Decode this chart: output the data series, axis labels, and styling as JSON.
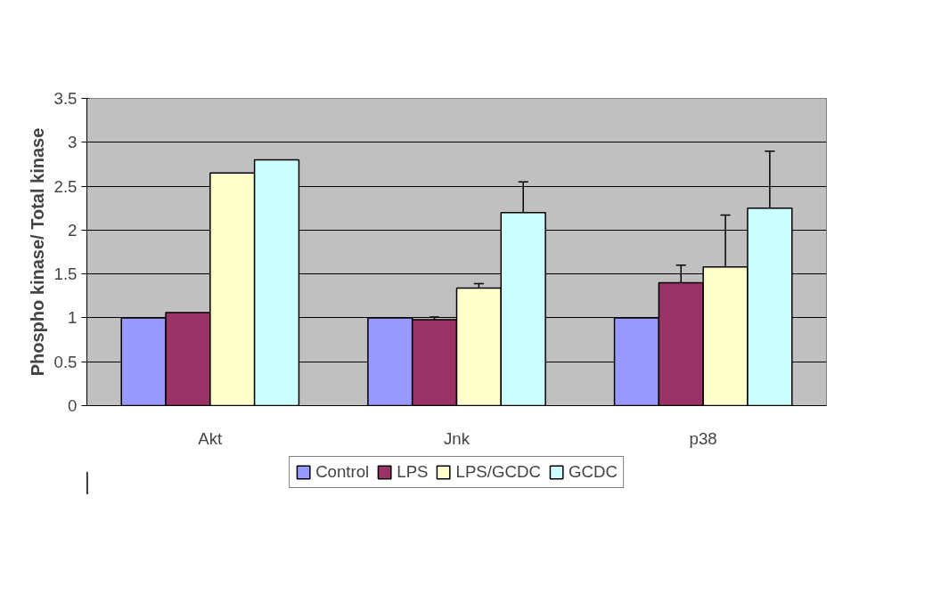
{
  "chart_data": {
    "type": "bar",
    "ylabel": "Phospho kinase/ Total kinase",
    "categories": [
      "Akt",
      "Jnk",
      "p38"
    ],
    "series": [
      {
        "name": "Control",
        "color": "#9999ff",
        "values": [
          1,
          1,
          1
        ]
      },
      {
        "name": "LPS",
        "color": "#993366",
        "values": [
          1.06,
          0.98,
          1.4
        ],
        "errors": [
          null,
          [
            0.98,
            1.01
          ],
          [
            1.4,
            1.6
          ]
        ]
      },
      {
        "name": "LPS/GCDC",
        "color": "#ffffcc",
        "values": [
          2.65,
          1.34,
          1.58
        ],
        "errors": [
          null,
          [
            1.34,
            1.39
          ],
          [
            1.58,
            2.17
          ]
        ]
      },
      {
        "name": "GCDC",
        "color": "#ccffff",
        "values": [
          2.8,
          2.2,
          2.25
        ],
        "errors": [
          null,
          [
            2.2,
            2.55
          ],
          [
            2.25,
            2.9
          ]
        ]
      }
    ],
    "ylim": [
      0,
      3.5
    ],
    "yticks": [
      0,
      0.5,
      1,
      1.5,
      2,
      2.5,
      3,
      3.5
    ],
    "grid": "y",
    "legend": "bottom"
  }
}
